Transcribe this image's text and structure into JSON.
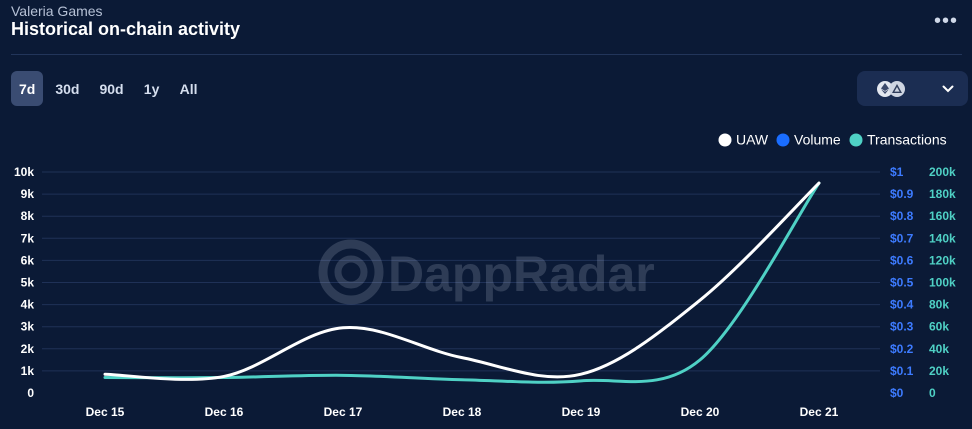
{
  "header": {
    "subtitle": "Valeria Games",
    "title": "Historical on-chain activity",
    "more_label": "•••"
  },
  "periods": [
    {
      "label": "7d",
      "active": true
    },
    {
      "label": "30d",
      "active": false
    },
    {
      "label": "90d",
      "active": false
    },
    {
      "label": "1y",
      "active": false
    },
    {
      "label": "All",
      "active": false
    }
  ],
  "chain_select": {
    "icons": [
      "ethereum-icon",
      "arbitrum-icon"
    ],
    "chevron": "⌄"
  },
  "watermark": "DappRadar",
  "colors": {
    "uaw": "#ffffff",
    "volume": "#1a6dff",
    "transactions": "#4fd1c5",
    "grid": "#1f3157",
    "axis_text": "#ffffff",
    "volume_axis": "#3d7bff",
    "tx_axis": "#4fd1c5"
  },
  "chart_data": {
    "type": "line",
    "title": "Historical on-chain activity",
    "categories": [
      "Dec 15",
      "Dec 16",
      "Dec 17",
      "Dec 18",
      "Dec 19",
      "Dec 20",
      "Dec 21"
    ],
    "legend": [
      "UAW",
      "Volume",
      "Transactions"
    ],
    "legend_position": "top-right",
    "grid": true,
    "series": [
      {
        "name": "UAW",
        "axis": "left",
        "values": [
          850,
          750,
          2950,
          1600,
          850,
          4200,
          9500
        ]
      },
      {
        "name": "Volume",
        "axis": "volume",
        "values": [
          0,
          0,
          0,
          0,
          0,
          0,
          0
        ]
      },
      {
        "name": "Transactions",
        "axis": "right",
        "values": [
          14000,
          14000,
          16000,
          12000,
          11000,
          30000,
          190000
        ]
      }
    ],
    "axes": {
      "left": {
        "ylim": [
          0,
          10000
        ],
        "ticks": [
          "0",
          "1k",
          "2k",
          "3k",
          "4k",
          "5k",
          "6k",
          "7k",
          "8k",
          "9k",
          "10k"
        ]
      },
      "volume": {
        "ylim": [
          0,
          1
        ],
        "ticks": [
          "$0",
          "$0.1",
          "$0.2",
          "$0.3",
          "$0.4",
          "$0.5",
          "$0.6",
          "$0.7",
          "$0.8",
          "$0.9",
          "$1"
        ]
      },
      "right": {
        "ylim": [
          0,
          200000
        ],
        "ticks": [
          "0",
          "20k",
          "40k",
          "60k",
          "80k",
          "100k",
          "120k",
          "140k",
          "160k",
          "180k",
          "200k"
        ]
      }
    }
  }
}
